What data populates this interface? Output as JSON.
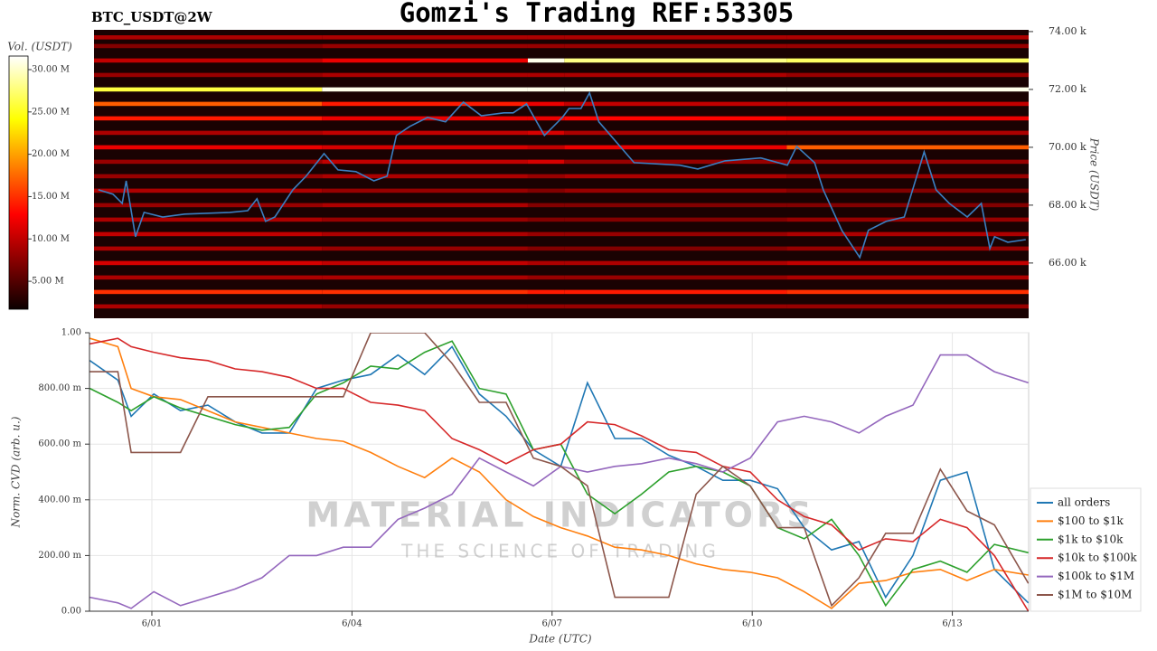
{
  "chart_data": [
    {
      "type": "heatmap",
      "title": "Gomzi's Trading REF:53305",
      "subtitle": "BTC_USDT@2W",
      "y_label": "Price (USDT)",
      "colorbar_label": "Vol. (USDT)",
      "xlim": [
        0.065,
        14.144
      ],
      "ylim": [
        64090,
        74060
      ],
      "yticks": [
        {
          "value": 66000,
          "label": "66.00 k"
        },
        {
          "value": 68000,
          "label": "68.00 k"
        },
        {
          "value": 70000,
          "label": "70.00 k"
        },
        {
          "value": 72000,
          "label": "72.00 k"
        },
        {
          "value": 74000,
          "label": "74.00 k"
        }
      ],
      "colorbar_lim": [
        1700000,
        31600000
      ],
      "colorbar_ticks": [
        {
          "value": 5000000,
          "label": "5.00 M"
        },
        {
          "value": 10000000,
          "label": "10.00 M"
        },
        {
          "value": 15000000,
          "label": "15.00 M"
        },
        {
          "value": 20000000,
          "label": "20.00 M"
        },
        {
          "value": 25000000,
          "label": "25.00 M"
        },
        {
          "value": 30000000,
          "label": "30.00 M"
        }
      ],
      "time_edges": [
        0.065,
        3.5,
        6.6,
        7.15,
        10.5,
        14.144
      ],
      "levels": [
        73800,
        73500,
        73000,
        72500,
        72000,
        71500,
        71000,
        70500,
        70000,
        69500,
        69000,
        68500,
        68000,
        67500,
        67000,
        66500,
        66000,
        65500,
        65000,
        64500
      ],
      "volumes": [
        [
          9000000,
          9000000,
          9000000,
          9000000,
          9000000
        ],
        [
          7000000,
          8000000,
          8000000,
          8000000,
          8000000
        ],
        [
          10000000,
          12000000,
          31000000,
          28000000,
          27000000
        ],
        [
          8000000,
          9000000,
          9000000,
          9000000,
          8000000
        ],
        [
          26000000,
          31000000,
          31000000,
          31000000,
          31000000
        ],
        [
          17000000,
          14000000,
          12000000,
          10000000,
          10000000
        ],
        [
          14000000,
          12000000,
          12000000,
          13000000,
          12000000
        ],
        [
          9000000,
          10000000,
          11000000,
          9000000,
          9000000
        ],
        [
          12000000,
          11000000,
          10000000,
          12000000,
          17000000
        ],
        [
          8000000,
          10000000,
          11000000,
          8000000,
          8000000
        ],
        [
          8000000,
          9000000,
          8000000,
          9000000,
          8000000
        ],
        [
          9000000,
          8000000,
          7000000,
          8000000,
          7000000
        ],
        [
          8000000,
          9000000,
          7000000,
          7000000,
          7000000
        ],
        [
          9000000,
          8000000,
          7000000,
          7000000,
          8000000
        ],
        [
          10000000,
          9000000,
          8000000,
          8000000,
          9000000
        ],
        [
          9000000,
          8000000,
          7000000,
          7000000,
          8000000
        ],
        [
          11000000,
          10000000,
          9000000,
          9000000,
          10000000
        ],
        [
          9000000,
          9000000,
          8000000,
          8000000,
          9000000
        ],
        [
          15000000,
          15000000,
          14000000,
          14000000,
          15000000
        ],
        [
          9000000,
          8000000,
          8000000,
          8000000,
          8000000
        ]
      ],
      "line_color": "#3a7fc1",
      "x": [
        0.13,
        0.35,
        0.49,
        0.55,
        0.69,
        0.82,
        1.1,
        1.43,
        2.11,
        2.38,
        2.52,
        2.65,
        2.79,
        3.06,
        3.26,
        3.53,
        3.74,
        4.01,
        4.28,
        4.48,
        4.62,
        4.82,
        5.09,
        5.36,
        5.63,
        5.9,
        6.24,
        6.38,
        6.58,
        6.85,
        7.12,
        7.22,
        7.4,
        7.53,
        7.67,
        8.2,
        8.89,
        9.16,
        9.57,
        10.11,
        10.51,
        10.65,
        10.92,
        11.05,
        11.33,
        11.6,
        11.73,
        12.0,
        12.27,
        12.48,
        12.57,
        12.75,
        12.95,
        13.22,
        13.43,
        13.56,
        13.63,
        13.83,
        14.1
      ],
      "values": [
        68530,
        68380,
        68060,
        68840,
        66910,
        67750,
        67590,
        67690,
        67750,
        67810,
        68220,
        67440,
        67590,
        68530,
        69000,
        69780,
        69220,
        69160,
        68840,
        69000,
        70410,
        70720,
        71030,
        70880,
        71560,
        71090,
        71190,
        71190,
        71500,
        70410,
        71030,
        71340,
        71340,
        71880,
        70880,
        69470,
        69380,
        69250,
        69530,
        69630,
        69380,
        70030,
        69470,
        68530,
        67130,
        66190,
        67130,
        67440,
        67590,
        69160,
        69840,
        68530,
        68060,
        67590,
        68060,
        66500,
        66910,
        66720,
        66810
      ]
    },
    {
      "type": "line",
      "x_label": "Date (UTC)",
      "y_label": "Norm. CVD (arb. u.)",
      "watermark": "MATERIAL INDICATORS",
      "watermark_sub": "THE SCIENCE OF TRADING",
      "xlim": [
        0.065,
        14.144
      ],
      "ylim": [
        0,
        1
      ],
      "grid": true,
      "xticks": [
        {
          "value": 1,
          "label": "6/01"
        },
        {
          "value": 4,
          "label": "6/04"
        },
        {
          "value": 7,
          "label": "6/07"
        },
        {
          "value": 10,
          "label": "6/10"
        },
        {
          "value": 13,
          "label": "6/13"
        }
      ],
      "yticks": [
        {
          "value": 0,
          "label": "0.00"
        },
        {
          "value": 0.2,
          "label": "200.00 m"
        },
        {
          "value": 0.4,
          "label": "400.00 m"
        },
        {
          "value": 0.6,
          "label": "600.00 m"
        },
        {
          "value": 0.8,
          "label": "800.00 m"
        },
        {
          "value": 1,
          "label": "1.00"
        }
      ],
      "legend": "lower right",
      "x": [
        0.07,
        0.49,
        0.69,
        1.03,
        1.43,
        1.84,
        2.25,
        2.65,
        3.06,
        3.47,
        3.87,
        4.28,
        4.69,
        5.09,
        5.5,
        5.91,
        6.31,
        6.72,
        7.13,
        7.53,
        7.94,
        8.34,
        8.75,
        9.16,
        9.56,
        9.97,
        10.38,
        10.78,
        11.19,
        11.6,
        12.0,
        12.41,
        12.82,
        13.22,
        13.63,
        14.14
      ],
      "series": [
        {
          "name": "all orders",
          "color": "#1f77b4",
          "values": [
            0.9,
            0.83,
            0.7,
            0.78,
            0.72,
            0.74,
            0.68,
            0.64,
            0.64,
            0.8,
            0.83,
            0.85,
            0.92,
            0.85,
            0.95,
            0.78,
            0.7,
            0.58,
            0.52,
            0.82,
            0.62,
            0.62,
            0.56,
            0.52,
            0.47,
            0.47,
            0.44,
            0.3,
            0.22,
            0.25,
            0.05,
            0.2,
            0.47,
            0.5,
            0.15,
            0.03
          ]
        },
        {
          "name": "$100 to $1k",
          "color": "#ff7f0e",
          "values": [
            0.98,
            0.95,
            0.8,
            0.77,
            0.76,
            0.72,
            0.68,
            0.66,
            0.64,
            0.62,
            0.61,
            0.57,
            0.52,
            0.48,
            0.55,
            0.5,
            0.4,
            0.34,
            0.3,
            0.27,
            0.23,
            0.22,
            0.2,
            0.17,
            0.15,
            0.14,
            0.12,
            0.07,
            0.01,
            0.1,
            0.11,
            0.14,
            0.15,
            0.11,
            0.15,
            0.13
          ]
        },
        {
          "name": "$1k to $10k",
          "color": "#2ca02c",
          "values": [
            0.8,
            0.75,
            0.72,
            0.77,
            0.73,
            0.7,
            0.67,
            0.65,
            0.66,
            0.78,
            0.82,
            0.88,
            0.87,
            0.93,
            0.97,
            0.8,
            0.78,
            0.58,
            0.6,
            0.42,
            0.35,
            0.42,
            0.5,
            0.52,
            0.5,
            0.45,
            0.3,
            0.26,
            0.33,
            0.2,
            0.02,
            0.15,
            0.18,
            0.14,
            0.24,
            0.21
          ]
        },
        {
          "name": "$10k to $100k",
          "color": "#d62728",
          "values": [
            0.96,
            0.98,
            0.95,
            0.93,
            0.91,
            0.9,
            0.87,
            0.86,
            0.84,
            0.8,
            0.8,
            0.75,
            0.74,
            0.72,
            0.62,
            0.58,
            0.53,
            0.58,
            0.6,
            0.68,
            0.67,
            0.63,
            0.58,
            0.57,
            0.52,
            0.5,
            0.4,
            0.34,
            0.31,
            0.22,
            0.26,
            0.25,
            0.33,
            0.3,
            0.2,
            0.0
          ]
        },
        {
          "name": "$100k to $1M",
          "color": "#9467bd",
          "values": [
            0.05,
            0.03,
            0.01,
            0.07,
            0.02,
            0.05,
            0.08,
            0.12,
            0.2,
            0.2,
            0.23,
            0.23,
            0.33,
            0.37,
            0.42,
            0.55,
            0.5,
            0.45,
            0.52,
            0.5,
            0.52,
            0.53,
            0.55,
            0.53,
            0.5,
            0.55,
            0.68,
            0.7,
            0.68,
            0.64,
            0.7,
            0.74,
            0.92,
            0.92,
            0.86,
            0.82
          ]
        },
        {
          "name": "$1M to $10M",
          "color": "#8c564b",
          "values": [
            0.86,
            0.86,
            0.57,
            0.57,
            0.57,
            0.77,
            0.77,
            0.77,
            0.77,
            0.77,
            0.77,
            1.0,
            1.0,
            1.0,
            0.89,
            0.75,
            0.75,
            0.55,
            0.52,
            0.45,
            0.05,
            0.05,
            0.05,
            0.42,
            0.52,
            0.45,
            0.3,
            0.3,
            0.02,
            0.12,
            0.28,
            0.28,
            0.51,
            0.36,
            0.31,
            0.1
          ]
        }
      ]
    }
  ]
}
